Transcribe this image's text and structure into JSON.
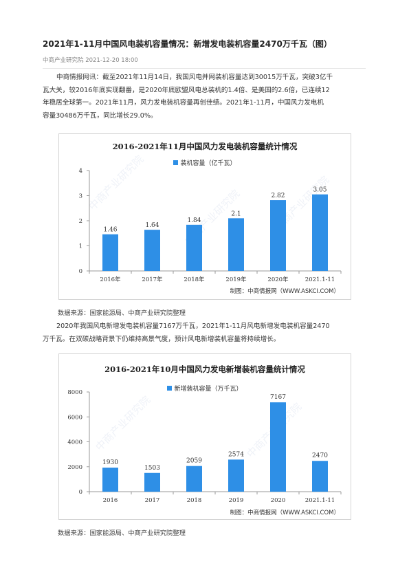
{
  "article": {
    "title": "2021年1-11月中国风电装机容量情况：新增发电装机容量2470万千瓦（图）",
    "meta": "中商产业研究院 2021-12-20 18:00",
    "para1_lines": [
      "中商情报网讯：截至2021年11月14日，我国风电并网装机容量达到30015万千瓦，突破3亿千",
      "瓦大关，较2016年底实现翻番，是2020年底欧盟风电总装机的1.4倍、是美国的2.6倍，已连续12",
      "年稳居全球第一。2021年11月，风力发电装机容量再创佳绩。2021年1-11月，中国风力发电机",
      "容量30486万千瓦，同比增长29.0%。"
    ],
    "source1": "数据来源：国家能源局、中商产业研究院整理",
    "para2_lines": [
      "2020年我国风电新增发电装机容量7167万千瓦，2021年1-11月风电新增发电装机容量2470",
      "万千瓦。在双碳战略背景下仍维持高景气度，预计风电新增装机容量将持续增长。"
    ],
    "source2": "数据来源：国家能源局、中商产业研究院整理"
  },
  "watermark": "中商产业研究院",
  "colors": {
    "bar": "#2e8fe6",
    "axis": "#9a9a9a",
    "grid": "#e2e2e2"
  },
  "chart_data": [
    {
      "type": "bar",
      "title": "2016-2021年11月中国风力发电装机容量统计情况",
      "legend": "装机容量（亿千瓦）",
      "categories": [
        "2016年",
        "2017年",
        "2018年",
        "2019年",
        "2020年",
        "2021.1-11"
      ],
      "series": [
        {
          "name": "装机容量（亿千瓦）",
          "values": [
            1.46,
            1.64,
            1.84,
            2.1,
            2.82,
            3.05
          ]
        }
      ],
      "value_labels": [
        "1.46",
        "1.64",
        "1.84",
        "2.1",
        "2.82",
        "3.05"
      ],
      "yticks": [
        "0",
        "1",
        "2",
        "3",
        "4"
      ],
      "ylim": [
        0,
        4
      ],
      "grid": false,
      "legend_position": "top-center",
      "credit": "制图：中商情报网（WWW.ASKCI.COM）"
    },
    {
      "type": "bar",
      "title": "2016-2021年10月中国风力发电新增装机容量统计情况",
      "legend": "新增装机容量（万千瓦）",
      "categories": [
        "2016",
        "2017",
        "2018",
        "2019",
        "2020",
        "2021.1-11"
      ],
      "series": [
        {
          "name": "新增装机容量（万千瓦）",
          "values": [
            1930,
            1503,
            2059,
            2574,
            7167,
            2470
          ]
        }
      ],
      "value_labels": [
        "1930",
        "1503",
        "2059",
        "2574",
        "7167",
        "2470"
      ],
      "yticks": [
        "0",
        "2000",
        "4000",
        "6000",
        "8000"
      ],
      "ylim": [
        0,
        8000
      ],
      "grid": false,
      "legend_position": "top-center",
      "credit": "制图：中商情报网（WWW.ASKCI.COM）"
    }
  ]
}
